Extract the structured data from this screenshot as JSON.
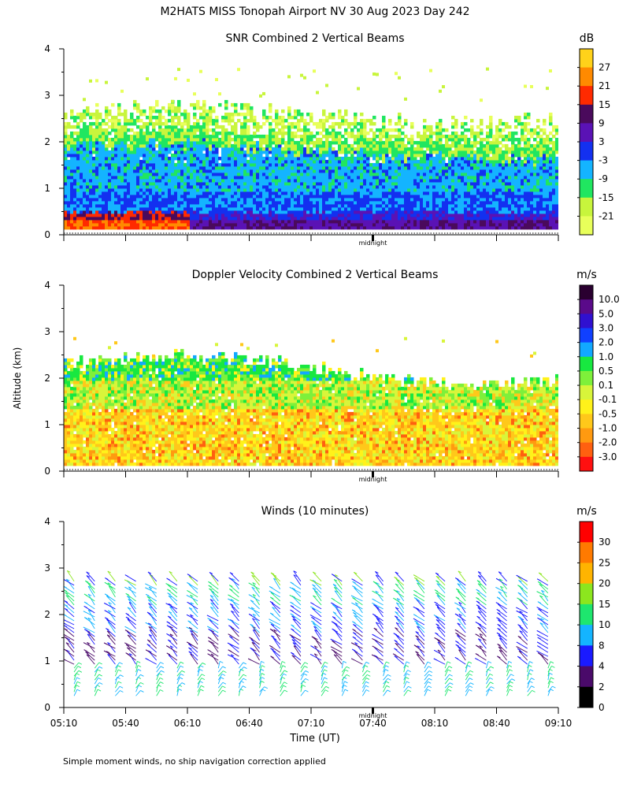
{
  "header": {
    "title": "M2HATS MISS Tonopah Airport NV  30 Aug 2023 Day 242"
  },
  "footer": {
    "note": "Simple moment winds, no ship navigation correction applied"
  },
  "shared": {
    "ylabel": "Altitude (km)",
    "xlabel": "Time (UT)",
    "midnight_label": "midnight",
    "x_tick_labels": [
      "05:10",
      "05:40",
      "06:10",
      "06:40",
      "07:10",
      "07:40",
      "08:10",
      "08:40",
      "09:10"
    ],
    "y_tick_labels": [
      "0",
      "1",
      "2",
      "3",
      "4"
    ],
    "ylim": [
      0,
      4
    ]
  },
  "chart_data": [
    {
      "type": "heatmap",
      "title": "SNR Combined 2 Vertical Beams",
      "unit": "dB",
      "x_range": [
        "05:10",
        "09:10"
      ],
      "ylim": [
        0,
        4
      ],
      "colorbar": {
        "labels": [
          "27",
          "21",
          "15",
          "9",
          "3",
          "-3",
          "-9",
          "-15",
          "-21"
        ],
        "colors": [
          "#ffd21a",
          "#ff8a00",
          "#ff2a00",
          "#4a0a5c",
          "#5a12b5",
          "#1330f0",
          "#14b4ff",
          "#20e660",
          "#c8f53c",
          "#e8ff5a"
        ]
      }
    },
    {
      "type": "heatmap",
      "title": "Doppler Velocity Combined 2 Vertical Beams",
      "unit": "m/s",
      "x_range": [
        "05:10",
        "09:10"
      ],
      "ylim": [
        0,
        4
      ],
      "colorbar": {
        "labels": [
          "10.0",
          "5.0",
          "3.0",
          "2.0",
          "1.0",
          "0.5",
          "0.1",
          "-0.1",
          "-0.5",
          "-1.0",
          "-2.0",
          "-3.0"
        ],
        "colors": [
          "#2a0030",
          "#5a0a8a",
          "#3010d0",
          "#1040ff",
          "#12a8ff",
          "#18e840",
          "#7ef03a",
          "#d8f53a",
          "#fff21a",
          "#ffc81a",
          "#ff9a10",
          "#ff6010",
          "#ff1010"
        ]
      }
    },
    {
      "type": "barbs",
      "title": "Winds (10 minutes)",
      "unit": "m/s",
      "x_range": [
        "05:10",
        "09:10"
      ],
      "ylim": [
        0,
        4
      ],
      "colorbar": {
        "labels": [
          "30",
          "25",
          "20",
          "15",
          "10",
          "8",
          "4",
          "2",
          "0"
        ],
        "colors": [
          "#ff0000",
          "#ff7a00",
          "#ffb400",
          "#8ce61e",
          "#1ee66e",
          "#14b4ff",
          "#1a1aff",
          "#4a0a6a",
          "#000000"
        ]
      }
    }
  ]
}
